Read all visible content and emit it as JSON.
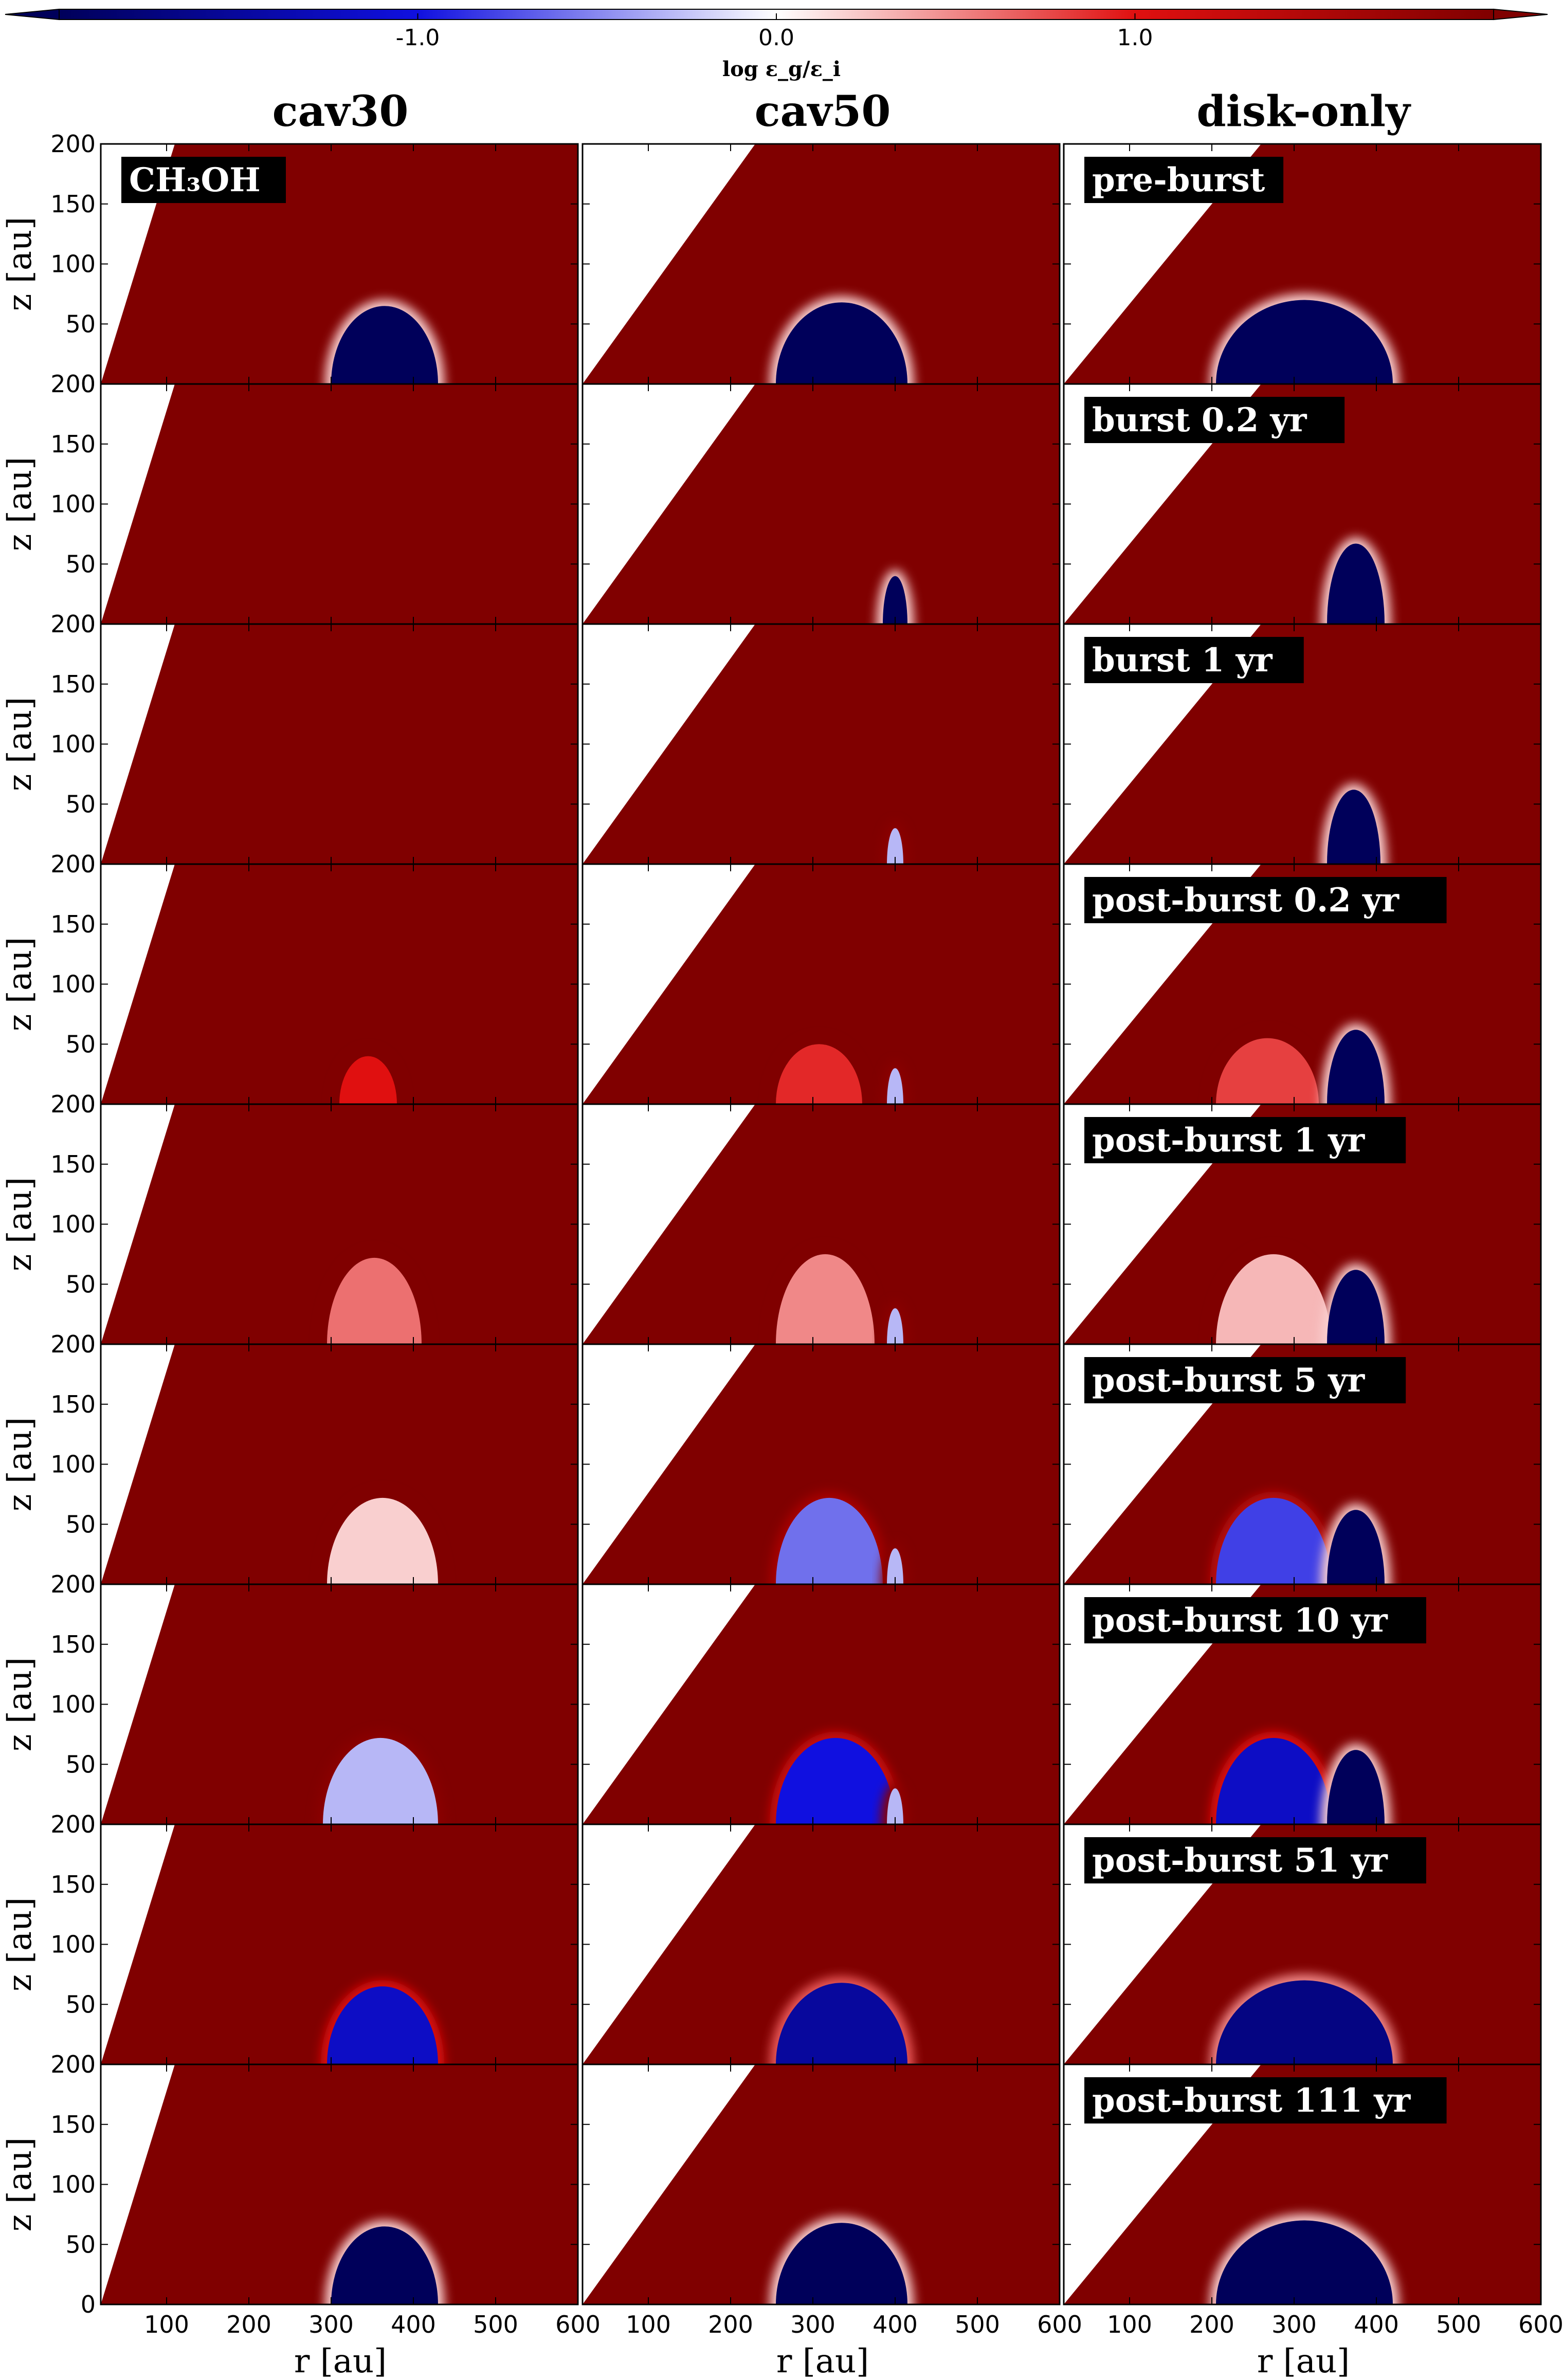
{
  "colorbar": {
    "ticks": [
      "-1.0",
      "0.0",
      "1.0"
    ],
    "tick_values": [
      -1.0,
      0.0,
      1.0
    ],
    "range": [
      -2.0,
      2.0
    ],
    "label": "log ε_g/ε_i",
    "colors": {
      "low": "#00005a",
      "mid": "#ffffff",
      "high": "#800000",
      "strong_blue": "#1010e0",
      "strong_red": "#e01010"
    }
  },
  "columns": [
    "cav30",
    "cav50",
    "disk-only"
  ],
  "species_label": "CH₃OH",
  "rows": [
    "pre-burst",
    "burst 0.2 yr",
    "burst 1 yr",
    "post-burst 0.2 yr",
    "post-burst 1 yr",
    "post-burst 5 yr",
    "post-burst 10 yr",
    "post-burst 51 yr",
    "post-burst 111 yr"
  ],
  "axes": {
    "ylabel": "z [au]",
    "xlabel": "r [au]",
    "yticks": [
      "200",
      "150",
      "100",
      "50",
      "0"
    ],
    "ytick_values": [
      200,
      150,
      100,
      50,
      0
    ],
    "xticks": [
      "100",
      "200",
      "300",
      "400",
      "500",
      "600"
    ],
    "xtick_values": [
      100,
      200,
      300,
      400,
      500,
      600
    ],
    "xlim": [
      20,
      600
    ],
    "ylim": [
      0,
      200
    ]
  },
  "chart_data": {
    "type": "heatmap",
    "quantity": "log ε_g/ε_i",
    "panels_grid": {
      "rows": 9,
      "cols": 3
    },
    "xlim": [
      20,
      600
    ],
    "ylim": [
      0,
      200
    ],
    "cavity_edge_r_at_z200": {
      "cav30": 110,
      "cav50": 230,
      "disk-only": 260
    },
    "cavity_edge_r_at_z0": {
      "cav30": 20,
      "cav50": 20,
      "disk-only": 20
    },
    "background_value": 2.0,
    "regions": [
      [
        {
          "col": "cav30",
          "r_in": 300,
          "r_out": 430,
          "z_top": 65,
          "value": -2.0
        },
        {
          "col": "cav50",
          "r_in": 255,
          "r_out": 415,
          "z_top": 68,
          "value": -2.0
        },
        {
          "col": "disk-only",
          "r_in": 205,
          "r_out": 420,
          "z_top": 70,
          "value": -2.0
        }
      ],
      [
        {
          "col": "cav50",
          "r_in": 385,
          "r_out": 415,
          "z_top": 40,
          "value": -2.0
        },
        {
          "col": "disk-only",
          "r_in": 340,
          "r_out": 410,
          "z_top": 67,
          "value": -2.0
        }
      ],
      [
        {
          "col": "cav50",
          "r_in": 390,
          "r_out": 410,
          "z_top": 30,
          "value": -0.3
        },
        {
          "col": "disk-only",
          "r_in": 340,
          "r_out": 405,
          "z_top": 62,
          "value": -2.0
        }
      ],
      [
        {
          "col": "cav30",
          "r_in": 310,
          "r_out": 380,
          "z_top": 40,
          "value": 1.0
        },
        {
          "col": "cav50",
          "r_in": 255,
          "r_out": 360,
          "z_top": 50,
          "value": 0.9
        },
        {
          "col": "cav50",
          "r_in": 390,
          "r_out": 410,
          "z_top": 30,
          "value": -0.3
        },
        {
          "col": "disk-only",
          "r_in": 205,
          "r_out": 330,
          "z_top": 55,
          "value": 0.8
        },
        {
          "col": "disk-only",
          "r_in": 340,
          "r_out": 410,
          "z_top": 62,
          "value": -2.0
        }
      ],
      [
        {
          "col": "cav30",
          "r_in": 295,
          "r_out": 410,
          "z_top": 72,
          "value": 0.6
        },
        {
          "col": "cav50",
          "r_in": 255,
          "r_out": 375,
          "z_top": 75,
          "value": 0.5
        },
        {
          "col": "cav50",
          "r_in": 390,
          "r_out": 410,
          "z_top": 30,
          "value": -0.3
        },
        {
          "col": "disk-only",
          "r_in": 205,
          "r_out": 345,
          "z_top": 75,
          "value": 0.3
        },
        {
          "col": "disk-only",
          "r_in": 340,
          "r_out": 410,
          "z_top": 62,
          "value": -2.0
        }
      ],
      [
        {
          "col": "cav30",
          "r_in": 295,
          "r_out": 430,
          "z_top": 72,
          "value": 0.2
        },
        {
          "col": "cav50",
          "r_in": 255,
          "r_out": 385,
          "z_top": 72,
          "value": -0.6
        },
        {
          "col": "cav50",
          "r_in": 390,
          "r_out": 410,
          "z_top": 30,
          "value": -0.3
        },
        {
          "col": "disk-only",
          "r_in": 205,
          "r_out": 345,
          "z_top": 72,
          "value": -0.8
        },
        {
          "col": "disk-only",
          "r_in": 340,
          "r_out": 410,
          "z_top": 62,
          "value": -2.0
        }
      ],
      [
        {
          "col": "cav30",
          "r_in": 290,
          "r_out": 430,
          "z_top": 72,
          "value": -0.3
        },
        {
          "col": "cav50",
          "r_in": 255,
          "r_out": 400,
          "z_top": 72,
          "value": -1.0
        },
        {
          "col": "cav50",
          "r_in": 390,
          "r_out": 410,
          "z_top": 30,
          "value": -0.3
        },
        {
          "col": "disk-only",
          "r_in": 205,
          "r_out": 345,
          "z_top": 72,
          "value": -1.2
        },
        {
          "col": "disk-only",
          "r_in": 340,
          "r_out": 410,
          "z_top": 62,
          "value": -2.0
        }
      ],
      [
        {
          "col": "cav30",
          "r_in": 295,
          "r_out": 430,
          "z_top": 65,
          "value": -1.2
        },
        {
          "col": "cav50",
          "r_in": 255,
          "r_out": 415,
          "z_top": 68,
          "value": -1.5
        },
        {
          "col": "disk-only",
          "r_in": 205,
          "r_out": 420,
          "z_top": 70,
          "value": -1.7
        }
      ],
      [
        {
          "col": "cav30",
          "r_in": 300,
          "r_out": 430,
          "z_top": 65,
          "value": -2.0
        },
        {
          "col": "cav50",
          "r_in": 255,
          "r_out": 415,
          "z_top": 68,
          "value": -2.0
        },
        {
          "col": "disk-only",
          "r_in": 205,
          "r_out": 420,
          "z_top": 70,
          "value": -2.0
        }
      ]
    ]
  }
}
